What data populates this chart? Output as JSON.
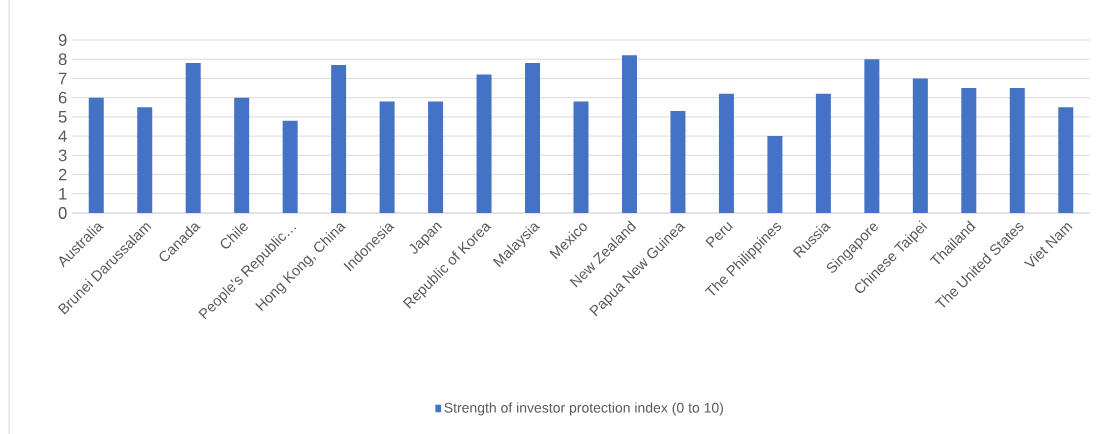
{
  "chart_data": {
    "type": "bar",
    "categories": [
      "Australia",
      "Brunei Darussalam",
      "Canada",
      "Chile",
      "People's Republic…",
      "Hong Kong, China",
      "Indonesia",
      "Japan",
      "Republic of Korea",
      "Malaysia",
      "Mexico",
      "New Zealand",
      "Papua New Guinea",
      "Peru",
      "The Philippines",
      "Russia",
      "Singapore",
      "Chinese Taipei",
      "Thailand",
      "The United States",
      "Viet Nam"
    ],
    "series": [
      {
        "name": "Strength of investor protection index (0 to 10)",
        "color": "#4472c4",
        "values": [
          6.0,
          5.5,
          7.8,
          6.0,
          4.8,
          7.7,
          5.8,
          5.8,
          7.2,
          7.8,
          5.8,
          8.2,
          5.3,
          6.2,
          4.0,
          6.2,
          8.0,
          7.0,
          6.5,
          6.5,
          5.5
        ]
      }
    ],
    "ylim": [
      0,
      9
    ],
    "yticks": [
      0,
      1,
      2,
      3,
      4,
      5,
      6,
      7,
      8,
      9
    ],
    "grid": "y",
    "legend": "bottom"
  }
}
